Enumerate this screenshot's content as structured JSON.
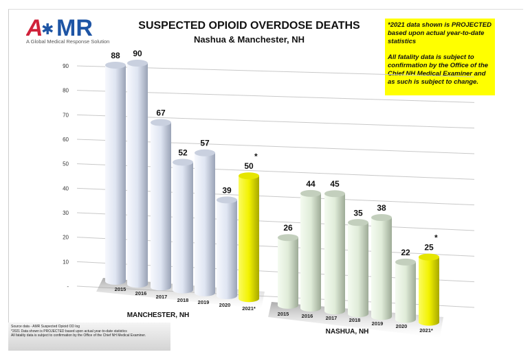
{
  "header": {
    "logo_text": "AMR",
    "logo_tagline": "A Global Medical Response Solution",
    "title": "SUSPECTED OPIOID OVERDOSE DEATHS",
    "subtitle": "Nashua & Manchester, NH"
  },
  "note": {
    "line1": "*2021 data shown is PROJECTED based upon actual year-to-date statistics",
    "line2": "All fatality data is subject to confirmation by the Office of the Chief NH Medical Examiner and as such is subject to change."
  },
  "footnote": {
    "line1": "Source data - AMR Suspected Opioid OD log",
    "line2": "*2021 Data shown is PROJECTED based upon actual year-to-date statistics",
    "line3": "All fatality data is subject to confirmation by the Office of the Chief NH Medical Examiner."
  },
  "colors": {
    "historic_manchester": "#dde4f2",
    "historic_nashua": "#e2efdc",
    "projected": "#f2f200"
  },
  "chart_data": {
    "type": "bar",
    "title": "SUSPECTED OPIOID OVERDOSE DEATHS",
    "ylim": [
      0,
      90
    ],
    "yticks": [
      "-",
      "10",
      "20",
      "30",
      "40",
      "50",
      "60",
      "70",
      "80",
      "90"
    ],
    "grid": true,
    "groups": [
      {
        "name": "MANCHESTER, NH",
        "categories": [
          "2015",
          "2016",
          "2017",
          "2018",
          "2019",
          "2020",
          "2021*"
        ],
        "values": [
          88,
          90,
          67,
          52,
          57,
          39,
          50
        ],
        "projected": [
          false,
          false,
          false,
          false,
          false,
          false,
          true
        ]
      },
      {
        "name": "NASHUA, NH",
        "categories": [
          "2015",
          "2016",
          "2017",
          "2018",
          "2019",
          "2020",
          "2021*"
        ],
        "values": [
          26,
          44,
          45,
          35,
          38,
          22,
          25
        ],
        "projected": [
          false,
          false,
          false,
          false,
          false,
          false,
          true
        ]
      }
    ],
    "projected_marker": "*"
  }
}
